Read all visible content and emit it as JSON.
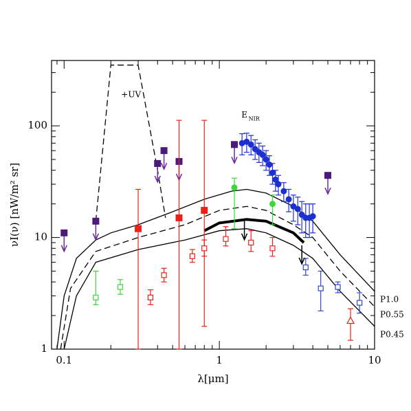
{
  "chart_data": {
    "type": "scatter",
    "xlabel": "λ[μm]",
    "ylabel": "νI(ν) [nW/m² sr]",
    "xlog": true,
    "ylog": true,
    "xlim": [
      0.083,
      10
    ],
    "ylim": [
      1,
      385
    ],
    "xticks": [
      {
        "value": 0.1,
        "label": "0.1"
      },
      1,
      10
    ],
    "yticks": [
      1,
      10,
      100
    ],
    "xminorticks": [
      0.09,
      0.2,
      0.3,
      0.4,
      0.5,
      0.6,
      0.7,
      0.8,
      0.9,
      2,
      3,
      4,
      5,
      6,
      7,
      8,
      9
    ],
    "yminorticks": [
      2,
      3,
      4,
      5,
      6,
      7,
      8,
      9,
      20,
      30,
      40,
      50,
      60,
      70,
      80,
      90,
      200,
      300
    ],
    "annotations": [
      {
        "text": "+UV",
        "x": 0.27,
        "y": 190
      },
      {
        "text": "E",
        "sub": "NIR",
        "x": 1.45,
        "y": 125
      }
    ],
    "lines": [
      {
        "name": "P1.0",
        "color": "#000",
        "style": "solid",
        "width": 1.3,
        "x": [
          0.09,
          0.1,
          0.12,
          0.16,
          0.2,
          0.3,
          0.5,
          0.8,
          1.2,
          1.5,
          2,
          3,
          4,
          6,
          10
        ],
        "values": [
          1,
          3,
          6.5,
          9.5,
          11,
          13,
          17,
          22,
          26,
          27,
          25,
          19,
          14,
          7,
          3.3
        ]
      },
      {
        "name": "P0.55",
        "color": "#000",
        "style": "dashed",
        "width": 1.3,
        "x": [
          0.095,
          0.11,
          0.16,
          0.3,
          0.6,
          1,
          1.5,
          2,
          3,
          4,
          6,
          10
        ],
        "values": [
          1,
          3.5,
          7.5,
          10,
          13,
          17.5,
          19,
          17.5,
          13,
          10,
          5,
          2.4
        ]
      },
      {
        "name": "P0.45",
        "color": "#000",
        "style": "solid",
        "width": 1.3,
        "x": [
          0.1,
          0.12,
          0.16,
          0.3,
          0.6,
          1,
          1.5,
          2,
          3,
          4,
          6,
          10
        ],
        "values": [
          1,
          3,
          6,
          7.8,
          9.5,
          11.5,
          12,
          11,
          8.5,
          6.5,
          3.3,
          1.6
        ]
      },
      {
        "color": "#000",
        "style": "dashed",
        "width": 1.3,
        "x": [
          0.16,
          0.2,
          0.3,
          0.4,
          0.45
        ],
        "values": [
          14,
          350,
          350,
          40,
          15
        ]
      },
      {
        "color": "#000",
        "style": "solid",
        "width": 4,
        "x": [
          0.8,
          1,
          1.5,
          2,
          3,
          3.5
        ],
        "values": [
          11.5,
          13.5,
          14.5,
          14,
          11,
          9
        ]
      }
    ],
    "series": [
      {
        "color": "#4b1a7a",
        "marker": "square",
        "limit": true,
        "x": [
          0.1,
          0.16,
          0.4,
          0.44,
          0.55,
          1.25,
          5
        ],
        "values": [
          11,
          14,
          46,
          60,
          48,
          68,
          36
        ]
      },
      {
        "color": "#e8221b",
        "marker": "square",
        "x": [
          0.3,
          0.55,
          0.8
        ],
        "values": [
          12,
          15,
          17.5
        ],
        "lower": [
          1,
          1,
          1.6
        ],
        "upper": [
          27,
          112,
          112
        ]
      },
      {
        "color": "#e8221b",
        "marker": "open-square",
        "x": [
          0.36,
          0.44,
          0.67,
          0.8,
          1.1,
          1.6,
          2.2
        ],
        "values": [
          2.9,
          4.6,
          6.8,
          8,
          9.7,
          9,
          8
        ],
        "lower": [
          2.5,
          4,
          6,
          6.8,
          8.4,
          7.5,
          6.8
        ],
        "upper": [
          3.4,
          5.3,
          7.8,
          9.5,
          12.5,
          11.5,
          10
        ]
      },
      {
        "color": "#2f48c6",
        "marker": "open-square",
        "x": [
          3.6,
          4.5,
          5.8,
          8
        ],
        "values": [
          5.4,
          3.5,
          3.6,
          2.6
        ],
        "lower": [
          4.6,
          2.2,
          3.2,
          2.1
        ],
        "upper": [
          6.5,
          5,
          4,
          3.2
        ]
      },
      {
        "color": "#3dd63a",
        "marker": "open-square",
        "x": [
          0.16,
          0.23
        ],
        "values": [
          2.9,
          3.6
        ],
        "lower": [
          2.5,
          3.1
        ],
        "upper": [
          5,
          4.2
        ]
      },
      {
        "color": "#3dd63a",
        "marker": "circle",
        "x": [
          1.25,
          2.2
        ],
        "values": [
          28,
          20
        ],
        "lower": [
          12,
          13
        ],
        "upper": [
          34,
          24
        ]
      },
      {
        "color": "#1d2fd1",
        "marker": "circle",
        "x": [
          1.4,
          1.5,
          1.6,
          1.7,
          1.8,
          1.9,
          2.0,
          2.1,
          2.2,
          2.3,
          2.4,
          2.6,
          2.8,
          3.0,
          3.2,
          3.4,
          3.6,
          3.8,
          4.0
        ],
        "values": [
          70,
          72,
          68,
          62,
          58,
          55,
          50,
          45,
          38,
          33,
          30,
          26,
          22,
          19,
          18,
          16,
          15,
          15,
          15.5
        ],
        "lower": [
          55,
          58,
          55,
          50,
          47,
          44,
          40,
          36,
          30,
          26,
          24,
          21,
          17,
          14,
          13,
          11,
          10,
          10,
          11
        ],
        "upper": [
          85,
          86,
          82,
          75,
          70,
          66,
          60,
          54,
          46,
          40,
          36,
          31,
          27,
          24,
          23,
          21,
          20,
          20,
          20
        ]
      },
      {
        "color": "#e8221b",
        "marker": "triangle",
        "x": [
          7
        ],
        "values": [
          1.8
        ],
        "lower": [
          1.2
        ],
        "upper": [
          2.3
        ]
      },
      {
        "color": "#000",
        "marker": "none",
        "limit": true,
        "x": [
          1.45,
          3.4
        ],
        "values": [
          14,
          8.5
        ]
      }
    ]
  }
}
